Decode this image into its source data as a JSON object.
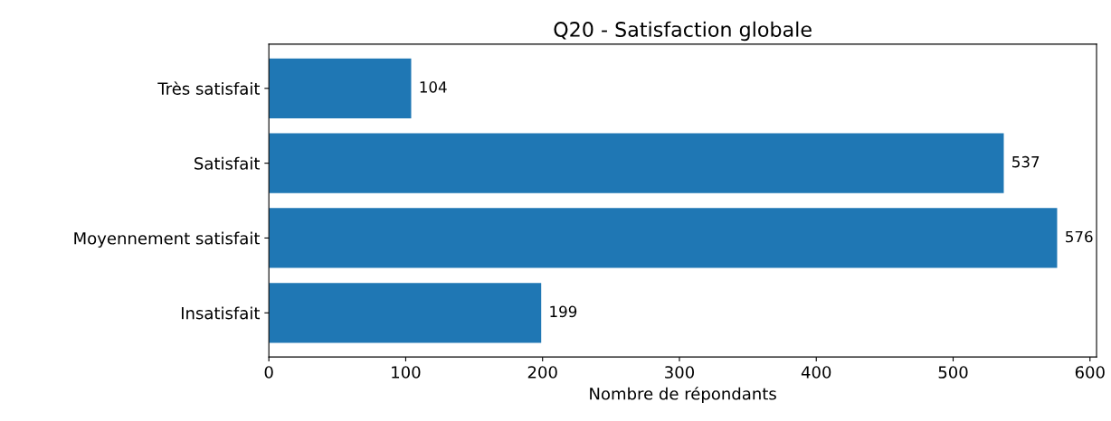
{
  "chart_data": {
    "type": "bar",
    "orientation": "horizontal",
    "title": "Q20 - Satisfaction globale",
    "xlabel": "Nombre de répondants",
    "categories": [
      "Très satisfait",
      "Satisfait",
      "Moyennement satisfait",
      "Insatisfait"
    ],
    "values": [
      104,
      537,
      576,
      199
    ],
    "color": "#1f77b4",
    "data_labels": true,
    "xlim": [
      0,
      604.8
    ],
    "xticks": [
      0,
      100,
      200,
      300,
      400,
      500,
      600
    ],
    "grid": false
  }
}
